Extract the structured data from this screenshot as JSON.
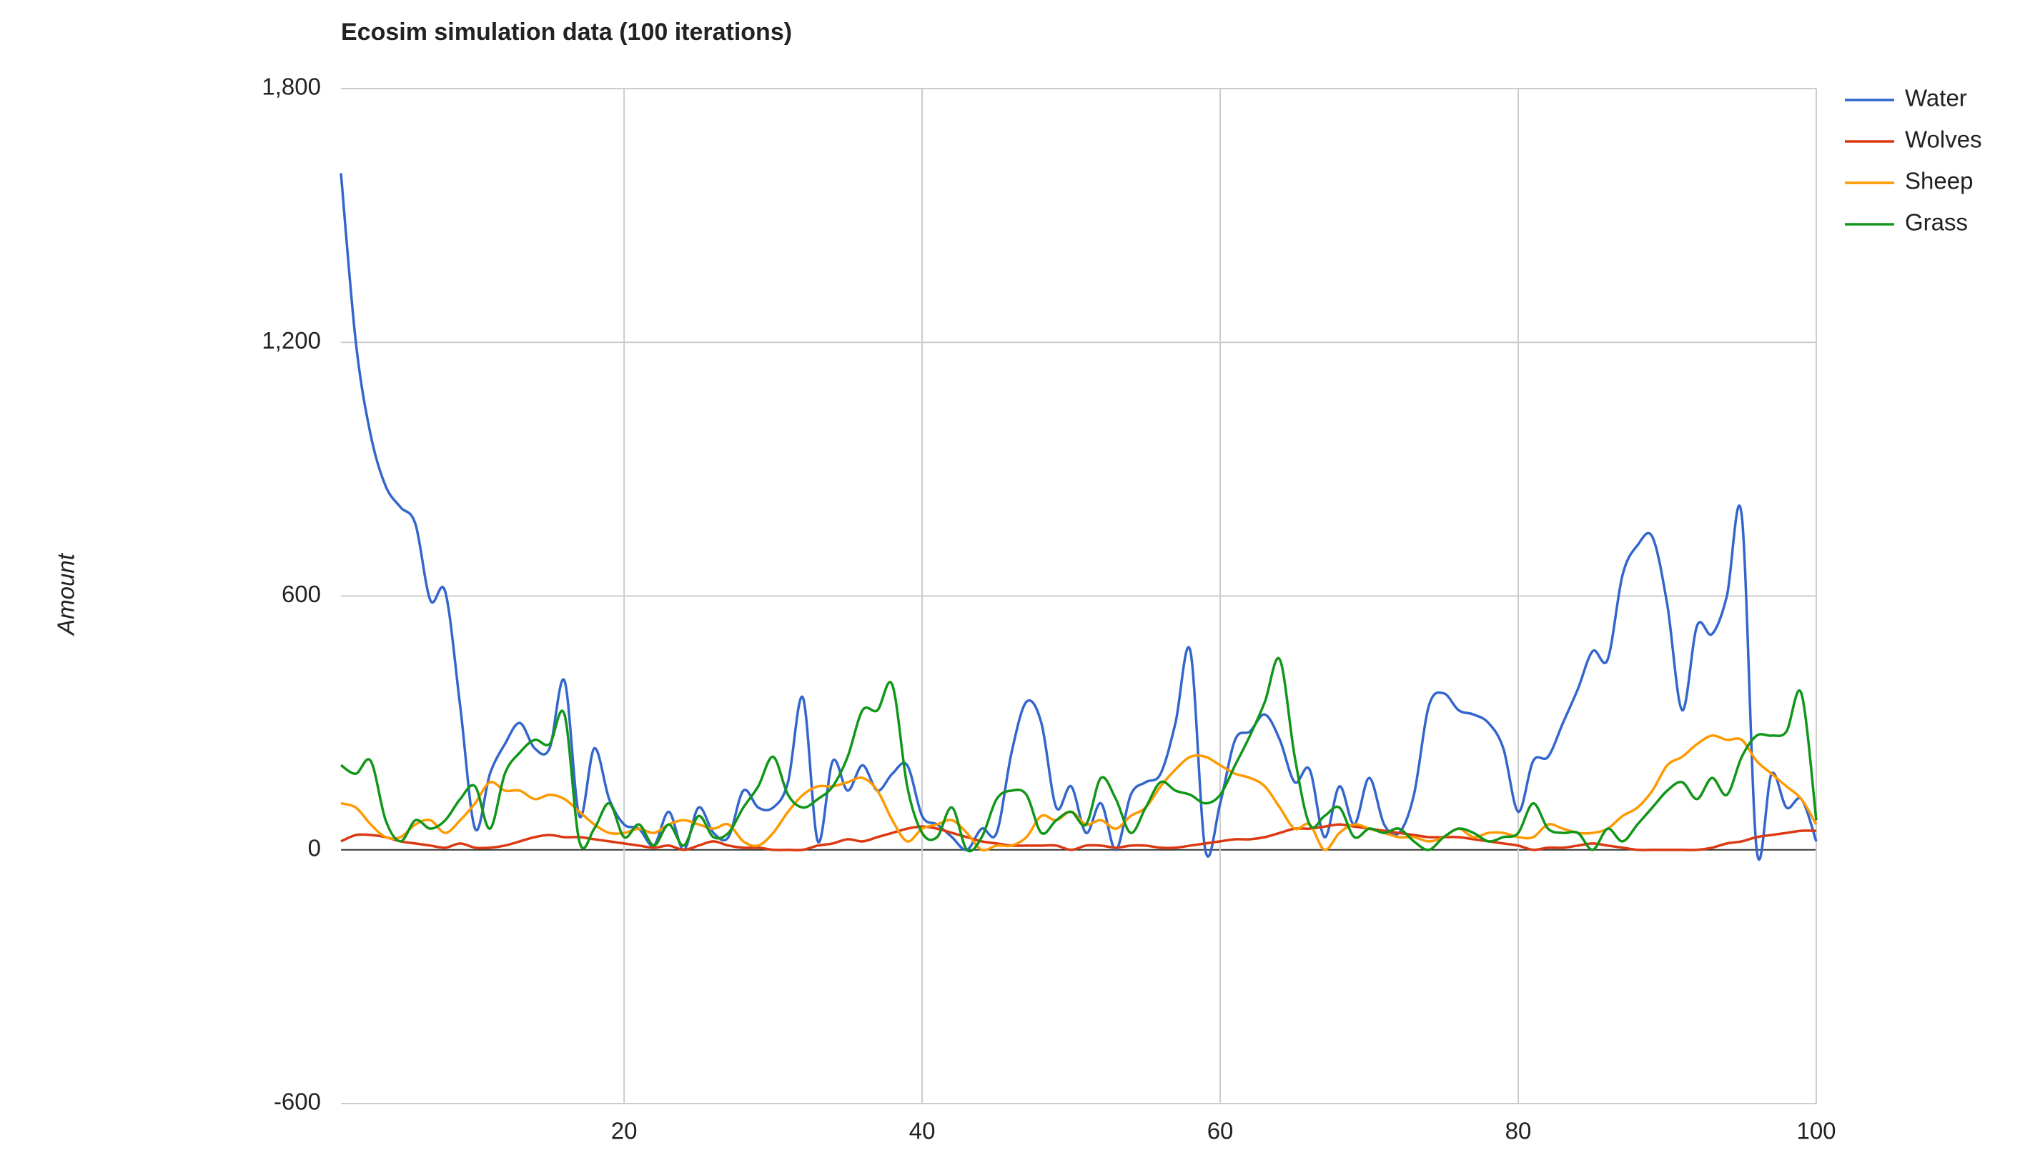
{
  "chart_data": {
    "type": "line",
    "title": "Ecosim simulation data (100 iterations)",
    "y_label": "Amount",
    "x": [
      1,
      2,
      3,
      4,
      5,
      6,
      7,
      8,
      9,
      10,
      11,
      12,
      13,
      14,
      15,
      16,
      17,
      18,
      19,
      20,
      21,
      22,
      23,
      24,
      25,
      26,
      27,
      28,
      29,
      30,
      31,
      32,
      33,
      34,
      35,
      36,
      37,
      38,
      39,
      40,
      41,
      42,
      43,
      44,
      45,
      46,
      47,
      48,
      49,
      50,
      51,
      52,
      53,
      54,
      55,
      56,
      57,
      58,
      59,
      60,
      61,
      62,
      63,
      64,
      65,
      66,
      67,
      68,
      69,
      70,
      71,
      72,
      73,
      74,
      75,
      76,
      77,
      78,
      79,
      80,
      81,
      82,
      83,
      84,
      85,
      86,
      87,
      88,
      89,
      90,
      91,
      92,
      93,
      94,
      95,
      96,
      97,
      98,
      99,
      100
    ],
    "xlim": [
      1,
      100
    ],
    "xticks": [
      20,
      40,
      60,
      80,
      100
    ],
    "ylim": [
      -600,
      1800
    ],
    "yticks": [
      -600,
      0,
      600,
      {
        "value": 1200,
        "label": "1,200"
      },
      {
        "value": 1800,
        "label": "1,800"
      }
    ],
    "grid": true,
    "legend": "right",
    "series": [
      {
        "name": "Water",
        "color": "#3366cc",
        "values": [
          1600,
          1200,
          980,
          860,
          810,
          770,
          590,
          610,
          340,
          50,
          180,
          250,
          300,
          240,
          240,
          400,
          80,
          240,
          120,
          60,
          50,
          10,
          90,
          0,
          100,
          40,
          30,
          140,
          100,
          100,
          160,
          360,
          20,
          210,
          140,
          200,
          140,
          180,
          200,
          80,
          60,
          30,
          0,
          50,
          40,
          230,
          350,
          300,
          100,
          150,
          40,
          110,
          0,
          130,
          160,
          180,
          300,
          470,
          0,
          110,
          260,
          280,
          320,
          260,
          160,
          190,
          30,
          150,
          60,
          170,
          60,
          40,
          130,
          340,
          370,
          330,
          320,
          300,
          240,
          90,
          210,
          220,
          300,
          380,
          470,
          450,
          650,
          720,
          740,
          580,
          330,
          530,
          510,
          600,
          790,
          0,
          180,
          100,
          120,
          20
        ]
      },
      {
        "name": "Wolves",
        "color": "#dc3912",
        "values": [
          20,
          35,
          35,
          30,
          20,
          15,
          10,
          5,
          15,
          5,
          5,
          10,
          20,
          30,
          35,
          30,
          30,
          25,
          20,
          15,
          10,
          5,
          10,
          0,
          10,
          20,
          10,
          5,
          5,
          0,
          0,
          0,
          10,
          15,
          25,
          20,
          30,
          40,
          50,
          55,
          50,
          40,
          30,
          20,
          15,
          10,
          10,
          10,
          10,
          0,
          10,
          10,
          5,
          10,
          10,
          5,
          5,
          10,
          15,
          20,
          25,
          25,
          30,
          40,
          50,
          50,
          55,
          60,
          55,
          50,
          45,
          40,
          35,
          30,
          30,
          30,
          25,
          20,
          15,
          10,
          0,
          5,
          5,
          10,
          15,
          10,
          5,
          0,
          0,
          0,
          0,
          0,
          5,
          15,
          20,
          30,
          35,
          40,
          45,
          45
        ]
      },
      {
        "name": "Sheep",
        "color": "#ff9900",
        "values": [
          110,
          100,
          60,
          30,
          30,
          60,
          70,
          40,
          70,
          110,
          160,
          140,
          140,
          120,
          130,
          120,
          90,
          60,
          40,
          40,
          50,
          40,
          60,
          70,
          60,
          50,
          60,
          20,
          10,
          40,
          90,
          130,
          150,
          150,
          160,
          170,
          140,
          70,
          20,
          50,
          60,
          70,
          40,
          0,
          10,
          10,
          30,
          80,
          70,
          90,
          60,
          70,
          50,
          80,
          100,
          150,
          190,
          220,
          220,
          200,
          180,
          170,
          150,
          100,
          50,
          60,
          0,
          40,
          60,
          50,
          40,
          30,
          30,
          20,
          30,
          50,
          30,
          40,
          40,
          30,
          30,
          60,
          50,
          40,
          40,
          50,
          80,
          100,
          140,
          200,
          220,
          250,
          270,
          260,
          260,
          210,
          180,
          150,
          120,
          60
        ]
      },
      {
        "name": "Grass",
        "color": "#109618",
        "values": [
          200,
          180,
          210,
          70,
          20,
          70,
          50,
          70,
          120,
          150,
          50,
          180,
          230,
          260,
          250,
          320,
          20,
          50,
          110,
          30,
          60,
          10,
          60,
          10,
          80,
          30,
          40,
          100,
          150,
          220,
          130,
          100,
          120,
          150,
          220,
          330,
          330,
          390,
          150,
          40,
          30,
          100,
          0,
          30,
          120,
          140,
          130,
          40,
          70,
          90,
          60,
          170,
          120,
          40,
          100,
          160,
          140,
          130,
          110,
          130,
          200,
          270,
          350,
          450,
          220,
          60,
          80,
          100,
          30,
          50,
          40,
          50,
          20,
          0,
          30,
          50,
          40,
          20,
          30,
          40,
          110,
          50,
          40,
          40,
          0,
          50,
          20,
          60,
          100,
          140,
          160,
          120,
          170,
          130,
          220,
          270,
          270,
          280,
          370,
          70
        ]
      }
    ]
  }
}
